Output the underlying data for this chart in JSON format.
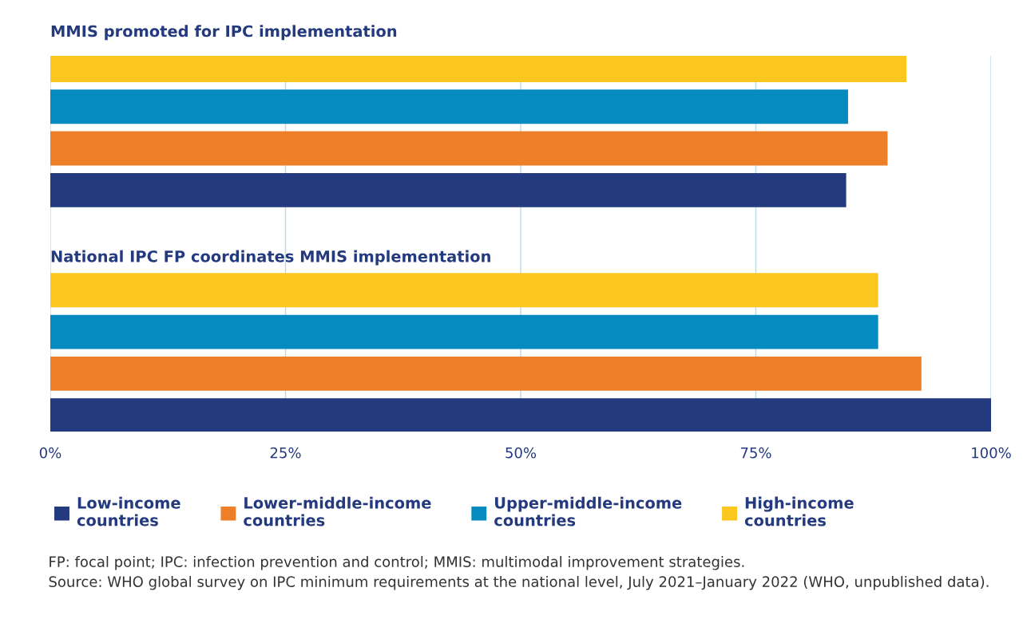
{
  "chart_data": {
    "type": "bar",
    "orientation": "horizontal",
    "categories": [
      "MMIS promoted for IPC implementation",
      "National IPC FP coordinates MMIS implementation"
    ],
    "series": [
      {
        "name": "Low-income countries",
        "color": "#233a7e",
        "values": [
          84.6,
          100
        ]
      },
      {
        "name": "Lower-middle-income countries",
        "color": "#ee7f28",
        "values": [
          89,
          92.6
        ]
      },
      {
        "name": "Upper-middle-income countries",
        "color": "#058bbf",
        "values": [
          84.8,
          88
        ]
      },
      {
        "name": "High-income countries",
        "color": "#fbc61e",
        "values": [
          91,
          88
        ]
      }
    ],
    "xlim": [
      0,
      100
    ],
    "xticks": [
      {
        "value": 0,
        "label": "0%"
      },
      {
        "value": 25,
        "label": "25%"
      },
      {
        "value": 50,
        "label": "50%"
      },
      {
        "value": 75,
        "label": "75%"
      },
      {
        "value": 100,
        "label": "100%"
      }
    ],
    "grid": "x",
    "legend": "bottom",
    "annotations": [
      "FP: focal point; IPC: infection prevention and control; MMIS: multimodal improvement strategies.",
      "Source: WHO global survey on IPC minimum requirements at the national level, July 2021–January 2022 (WHO, unpublished data)."
    ]
  }
}
